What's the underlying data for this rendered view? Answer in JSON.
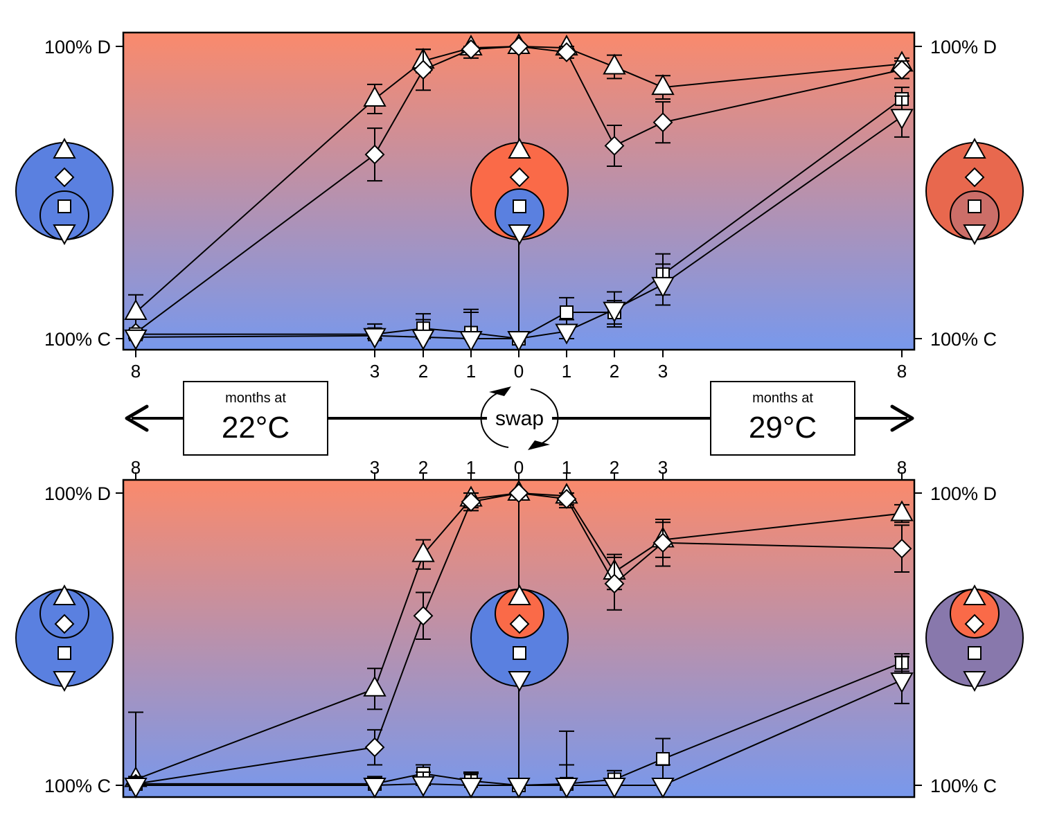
{
  "axis": {
    "y_top_label": "100% D",
    "y_bottom_label": "100% C",
    "x_ticks": [
      "8",
      "3",
      "2",
      "1",
      "0",
      "1",
      "2",
      "3",
      "8"
    ]
  },
  "middle": {
    "left_box": {
      "small": "months at",
      "big": "22°C"
    },
    "right_box": {
      "small": "months at",
      "big": "29°C"
    },
    "swap_label": "swap"
  },
  "colors": {
    "gradient_top": "#fa8a6c",
    "gradient_bottom": "#7898ec",
    "blue": "#5a80e0",
    "orange": "#fa6a48",
    "top_right_outer": "#e8684e",
    "top_right_inner": "#cc6e68",
    "bottom_right_outer": "#8878ac",
    "bottom_right_inner": "#fa6a48"
  },
  "chart_data": [
    {
      "type": "line",
      "panel": "top",
      "x": [
        -8,
        -3,
        -2,
        -1,
        0,
        1,
        2,
        3,
        8
      ],
      "x_tick_labels": [
        "8",
        "3",
        "2",
        "1",
        "0",
        "1",
        "2",
        "3",
        "8"
      ],
      "ylim": [
        0,
        100
      ],
      "series": [
        {
          "marker": "triangle-up",
          "values": [
            9,
            82,
            95,
            99.5,
            100,
            99.5,
            93,
            86,
            94
          ],
          "errors": [
            6,
            5,
            4,
            2,
            0,
            2,
            4,
            4,
            2
          ]
        },
        {
          "marker": "diamond",
          "values": [
            2,
            63,
            92,
            99,
            100,
            98,
            66,
            74,
            92
          ],
          "errors": [
            1,
            9,
            7,
            3,
            0,
            2,
            7,
            7,
            3
          ]
        },
        {
          "marker": "square",
          "values": [
            1.5,
            1.5,
            3.5,
            2,
            0,
            9,
            9,
            22,
            82
          ],
          "errors": [
            1,
            2,
            5,
            7,
            0,
            5,
            4,
            7,
            4
          ]
        },
        {
          "marker": "triangle-down",
          "values": [
            0.5,
            1,
            0.5,
            0,
            0,
            2.5,
            10,
            18.5,
            76
          ],
          "errors": [
            1,
            4,
            6,
            10,
            0,
            4,
            6,
            7,
            7
          ]
        }
      ]
    },
    {
      "type": "line",
      "panel": "bottom",
      "x": [
        -8,
        -3,
        -2,
        -1,
        0,
        1,
        2,
        3,
        8
      ],
      "x_tick_labels": [
        "8",
        "3",
        "2",
        "1",
        "0",
        "1",
        "2",
        "3",
        "8"
      ],
      "ylim": [
        0,
        100
      ],
      "series": [
        {
          "marker": "triangle-up",
          "values": [
            2,
            33,
            79,
            98,
            100,
            99,
            73,
            84,
            93
          ],
          "errors": [
            23,
            7,
            5,
            3,
            0,
            3,
            6,
            6,
            3
          ]
        },
        {
          "marker": "diamond",
          "values": [
            0.5,
            13,
            58,
            97,
            100,
            98,
            69,
            83,
            81
          ],
          "errors": [
            1,
            6,
            8,
            3,
            0,
            3,
            9,
            8,
            8
          ]
        },
        {
          "marker": "square",
          "values": [
            0.5,
            0.5,
            4,
            1.5,
            0,
            0.5,
            2,
            9,
            42
          ],
          "errors": [
            2,
            2,
            3,
            3,
            0,
            18,
            3,
            7,
            3
          ]
        },
        {
          "marker": "triangle-down",
          "values": [
            0,
            0,
            0.5,
            0,
            0,
            0,
            0,
            0,
            36
          ],
          "errors": [
            3,
            3,
            4,
            4,
            0,
            7,
            5,
            7,
            8
          ]
        }
      ]
    }
  ]
}
